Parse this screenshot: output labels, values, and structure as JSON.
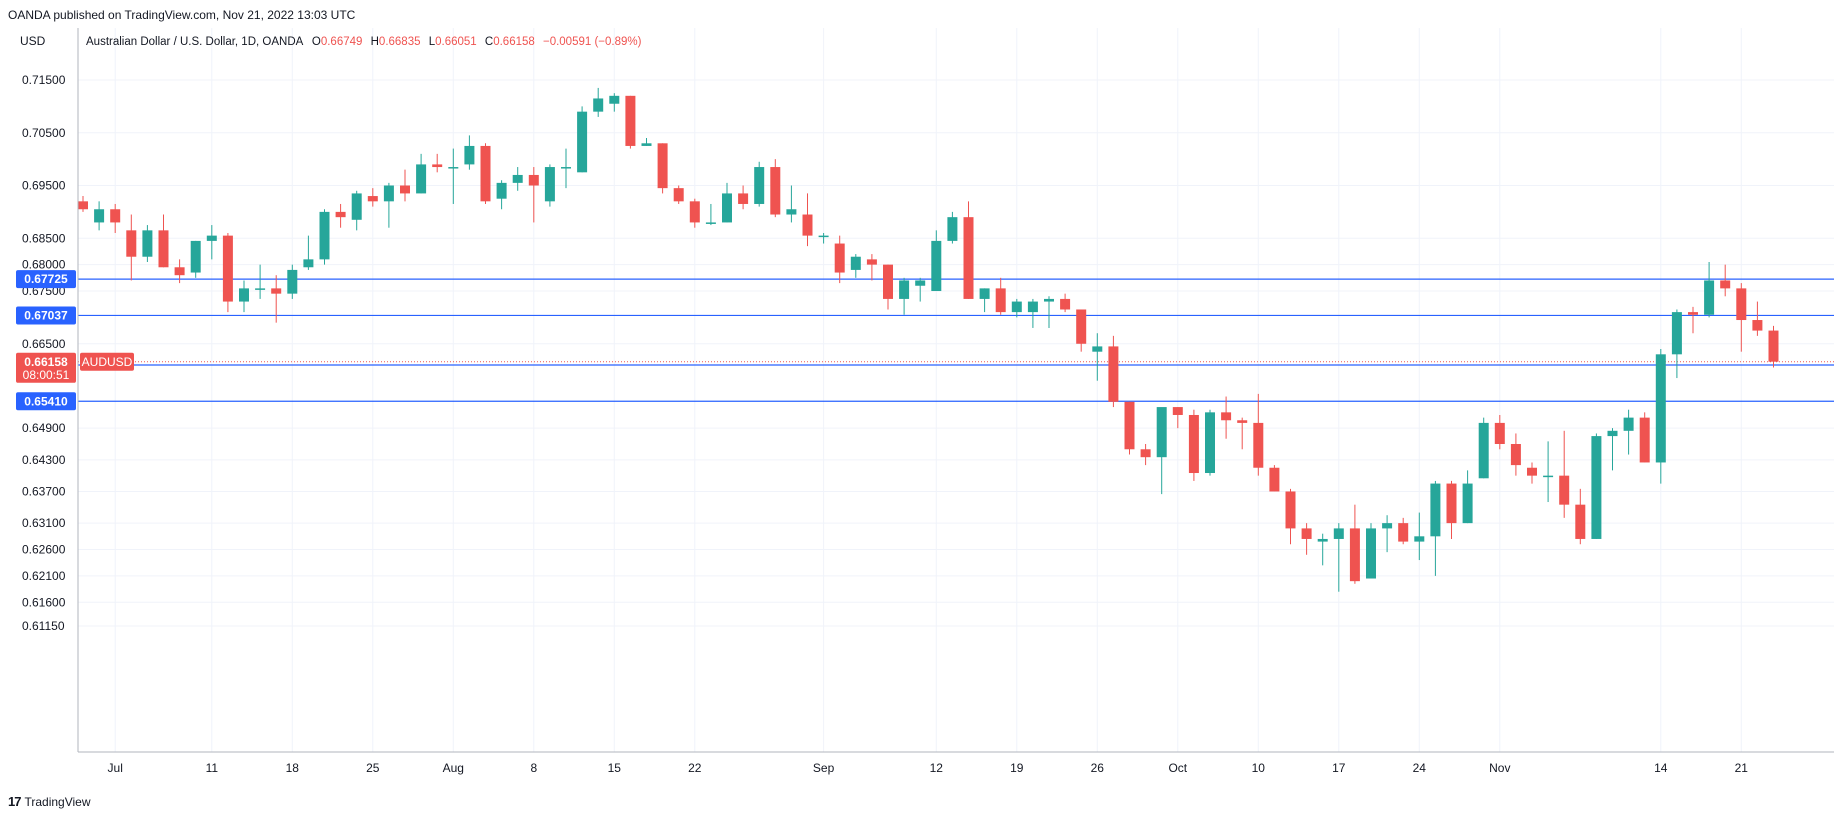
{
  "header": {
    "published": "OANDA published on TradingView.com, Nov 21, 2022 13:03 UTC"
  },
  "footer": {
    "logo": "17",
    "brand": "TradingView"
  },
  "chart_data": {
    "type": "candlestick",
    "title": "Australian Dollar / U.S. Dollar, 1D, OANDA",
    "currency": "USD",
    "ohlc_legend": {
      "o_label": "O",
      "o": "0.66749",
      "h_label": "H",
      "h": "0.66835",
      "l_label": "L",
      "l": "0.66051",
      "c_label": "C",
      "c": "0.66158",
      "change": "−0.00591 (−0.89%)"
    },
    "ylim": [
      0.61,
      0.72
    ],
    "y_ticks": [
      "0.71500",
      "0.70500",
      "0.69500",
      "0.68500",
      "0.68000",
      "0.67500",
      "0.66500",
      "0.64900",
      "0.64300",
      "0.63700",
      "0.63100",
      "0.62600",
      "0.62100",
      "0.61600",
      "0.61150"
    ],
    "x_ticks": [
      {
        "label": "Jul",
        "index": 2
      },
      {
        "label": "11",
        "index": 8
      },
      {
        "label": "18",
        "index": 13
      },
      {
        "label": "25",
        "index": 18
      },
      {
        "label": "Aug",
        "index": 23
      },
      {
        "label": "8",
        "index": 28
      },
      {
        "label": "15",
        "index": 33
      },
      {
        "label": "22",
        "index": 38
      },
      {
        "label": "Sep",
        "index": 46
      },
      {
        "label": "12",
        "index": 53
      },
      {
        "label": "19",
        "index": 58
      },
      {
        "label": "26",
        "index": 63
      },
      {
        "label": "Oct",
        "index": 68
      },
      {
        "label": "10",
        "index": 73
      },
      {
        "label": "17",
        "index": 78
      },
      {
        "label": "24",
        "index": 83
      },
      {
        "label": "Nov",
        "index": 88
      },
      {
        "label": "14",
        "index": 98
      },
      {
        "label": "21",
        "index": 103
      }
    ],
    "horizontal_lines": [
      {
        "value": 0.67725,
        "label": "0.67725"
      },
      {
        "value": 0.67037,
        "label": "0.67037"
      },
      {
        "value": 0.66098,
        "label": "0.66098"
      },
      {
        "value": 0.6541,
        "label": "0.65410"
      }
    ],
    "last_price": {
      "value": 0.66158,
      "label": "0.66158",
      "countdown": "08:00:51",
      "symbol": "AUDUSD"
    },
    "colors": {
      "up": "#26a69a",
      "down": "#ef5350",
      "line": "#2962ff",
      "grid": "#f0f3fa",
      "axis": "#b2b5be"
    },
    "candles": [
      [
        0.692,
        0.693,
        0.69,
        0.6905
      ],
      [
        0.688,
        0.692,
        0.6865,
        0.6905
      ],
      [
        0.6905,
        0.6915,
        0.686,
        0.688
      ],
      [
        0.6865,
        0.6895,
        0.677,
        0.6815
      ],
      [
        0.6815,
        0.6875,
        0.6805,
        0.6865
      ],
      [
        0.6865,
        0.6895,
        0.6795,
        0.6795
      ],
      [
        0.6795,
        0.681,
        0.6765,
        0.678
      ],
      [
        0.6785,
        0.6845,
        0.6775,
        0.6845
      ],
      [
        0.6845,
        0.6875,
        0.681,
        0.6855
      ],
      [
        0.6855,
        0.686,
        0.671,
        0.673
      ],
      [
        0.673,
        0.677,
        0.671,
        0.6755
      ],
      [
        0.6755,
        0.68,
        0.6735,
        0.6755
      ],
      [
        0.6755,
        0.678,
        0.669,
        0.6745
      ],
      [
        0.6745,
        0.68,
        0.6735,
        0.679
      ],
      [
        0.6795,
        0.6855,
        0.679,
        0.681
      ],
      [
        0.681,
        0.6905,
        0.68,
        0.69
      ],
      [
        0.69,
        0.6915,
        0.687,
        0.689
      ],
      [
        0.6885,
        0.694,
        0.6865,
        0.6935
      ],
      [
        0.693,
        0.6945,
        0.691,
        0.692
      ],
      [
        0.692,
        0.6955,
        0.687,
        0.695
      ],
      [
        0.695,
        0.698,
        0.692,
        0.6935
      ],
      [
        0.6935,
        0.701,
        0.6935,
        0.699
      ],
      [
        0.699,
        0.701,
        0.6975,
        0.6985
      ],
      [
        0.6985,
        0.702,
        0.6915,
        0.6985
      ],
      [
        0.699,
        0.7045,
        0.698,
        0.7025
      ],
      [
        0.7025,
        0.703,
        0.6915,
        0.692
      ],
      [
        0.6925,
        0.696,
        0.6905,
        0.6955
      ],
      [
        0.6955,
        0.6985,
        0.694,
        0.697
      ],
      [
        0.697,
        0.6985,
        0.688,
        0.695
      ],
      [
        0.692,
        0.699,
        0.691,
        0.6985
      ],
      [
        0.6985,
        0.702,
        0.6945,
        0.6985
      ],
      [
        0.6975,
        0.71,
        0.6975,
        0.709
      ],
      [
        0.709,
        0.7135,
        0.708,
        0.7115
      ],
      [
        0.7105,
        0.7125,
        0.709,
        0.712
      ],
      [
        0.712,
        0.712,
        0.702,
        0.7025
      ],
      [
        0.7025,
        0.704,
        0.7025,
        0.703
      ],
      [
        0.703,
        0.703,
        0.6935,
        0.6945
      ],
      [
        0.6945,
        0.695,
        0.6915,
        0.692
      ],
      [
        0.692,
        0.6925,
        0.687,
        0.688
      ],
      [
        0.688,
        0.6915,
        0.6875,
        0.688
      ],
      [
        0.688,
        0.6955,
        0.688,
        0.6935
      ],
      [
        0.6935,
        0.695,
        0.6905,
        0.6915
      ],
      [
        0.6915,
        0.6995,
        0.691,
        0.6985
      ],
      [
        0.6985,
        0.7,
        0.689,
        0.6895
      ],
      [
        0.6895,
        0.695,
        0.688,
        0.6905
      ],
      [
        0.6895,
        0.6935,
        0.6835,
        0.6855
      ],
      [
        0.6855,
        0.686,
        0.684,
        0.6855
      ],
      [
        0.684,
        0.6855,
        0.6765,
        0.6785
      ],
      [
        0.679,
        0.682,
        0.6775,
        0.6815
      ],
      [
        0.681,
        0.682,
        0.677,
        0.68
      ],
      [
        0.68,
        0.68,
        0.6715,
        0.6735
      ],
      [
        0.6735,
        0.6775,
        0.6705,
        0.677
      ],
      [
        0.676,
        0.6775,
        0.673,
        0.677
      ],
      [
        0.675,
        0.6865,
        0.675,
        0.6845
      ],
      [
        0.6845,
        0.69,
        0.684,
        0.689
      ],
      [
        0.689,
        0.692,
        0.6735,
        0.6735
      ],
      [
        0.6735,
        0.6755,
        0.671,
        0.6755
      ],
      [
        0.6755,
        0.6775,
        0.6705,
        0.671
      ],
      [
        0.671,
        0.6735,
        0.67,
        0.673
      ],
      [
        0.671,
        0.6735,
        0.668,
        0.673
      ],
      [
        0.673,
        0.674,
        0.668,
        0.6735
      ],
      [
        0.6735,
        0.6745,
        0.671,
        0.6715
      ],
      [
        0.6715,
        0.671,
        0.6635,
        0.665
      ],
      [
        0.6635,
        0.667,
        0.658,
        0.6645
      ],
      [
        0.6645,
        0.6665,
        0.653,
        0.654
      ],
      [
        0.654,
        0.654,
        0.644,
        0.645
      ],
      [
        0.645,
        0.646,
        0.642,
        0.6435
      ],
      [
        0.6435,
        0.6525,
        0.6365,
        0.653
      ],
      [
        0.653,
        0.653,
        0.649,
        0.6515
      ],
      [
        0.6515,
        0.6525,
        0.639,
        0.6405
      ],
      [
        0.6405,
        0.6525,
        0.64,
        0.652
      ],
      [
        0.652,
        0.655,
        0.647,
        0.6505
      ],
      [
        0.6505,
        0.651,
        0.645,
        0.65
      ],
      [
        0.65,
        0.6555,
        0.64,
        0.6415
      ],
      [
        0.6415,
        0.642,
        0.637,
        0.637
      ],
      [
        0.637,
        0.6375,
        0.627,
        0.63
      ],
      [
        0.63,
        0.631,
        0.625,
        0.628
      ],
      [
        0.6275,
        0.629,
        0.623,
        0.628
      ],
      [
        0.628,
        0.631,
        0.618,
        0.63
      ],
      [
        0.63,
        0.6345,
        0.6195,
        0.62
      ],
      [
        0.6205,
        0.631,
        0.6205,
        0.63
      ],
      [
        0.63,
        0.6325,
        0.6255,
        0.631
      ],
      [
        0.631,
        0.632,
        0.627,
        0.6275
      ],
      [
        0.6275,
        0.633,
        0.624,
        0.6285
      ],
      [
        0.6285,
        0.639,
        0.621,
        0.6385
      ],
      [
        0.6385,
        0.639,
        0.628,
        0.631
      ],
      [
        0.631,
        0.641,
        0.631,
        0.6385
      ],
      [
        0.6395,
        0.651,
        0.6395,
        0.65
      ],
      [
        0.65,
        0.6515,
        0.645,
        0.646
      ],
      [
        0.646,
        0.648,
        0.64,
        0.642
      ],
      [
        0.6415,
        0.6425,
        0.6385,
        0.64
      ],
      [
        0.64,
        0.6465,
        0.635,
        0.64
      ],
      [
        0.64,
        0.6485,
        0.632,
        0.6345
      ],
      [
        0.6345,
        0.6375,
        0.627,
        0.628
      ],
      [
        0.628,
        0.648,
        0.628,
        0.6475
      ],
      [
        0.6475,
        0.649,
        0.641,
        0.6485
      ],
      [
        0.6485,
        0.6525,
        0.644,
        0.651
      ],
      [
        0.651,
        0.652,
        0.6425,
        0.6425
      ],
      [
        0.6425,
        0.664,
        0.6385,
        0.663
      ],
      [
        0.663,
        0.6715,
        0.6585,
        0.671
      ],
      [
        0.671,
        0.672,
        0.667,
        0.6705
      ],
      [
        0.6705,
        0.6805,
        0.67,
        0.677
      ],
      [
        0.677,
        0.68,
        0.674,
        0.6755
      ],
      [
        0.6755,
        0.6765,
        0.6635,
        0.6695
      ],
      [
        0.6695,
        0.673,
        0.6665,
        0.6675
      ],
      [
        0.6675,
        0.6684,
        0.6605,
        0.6616
      ]
    ]
  }
}
